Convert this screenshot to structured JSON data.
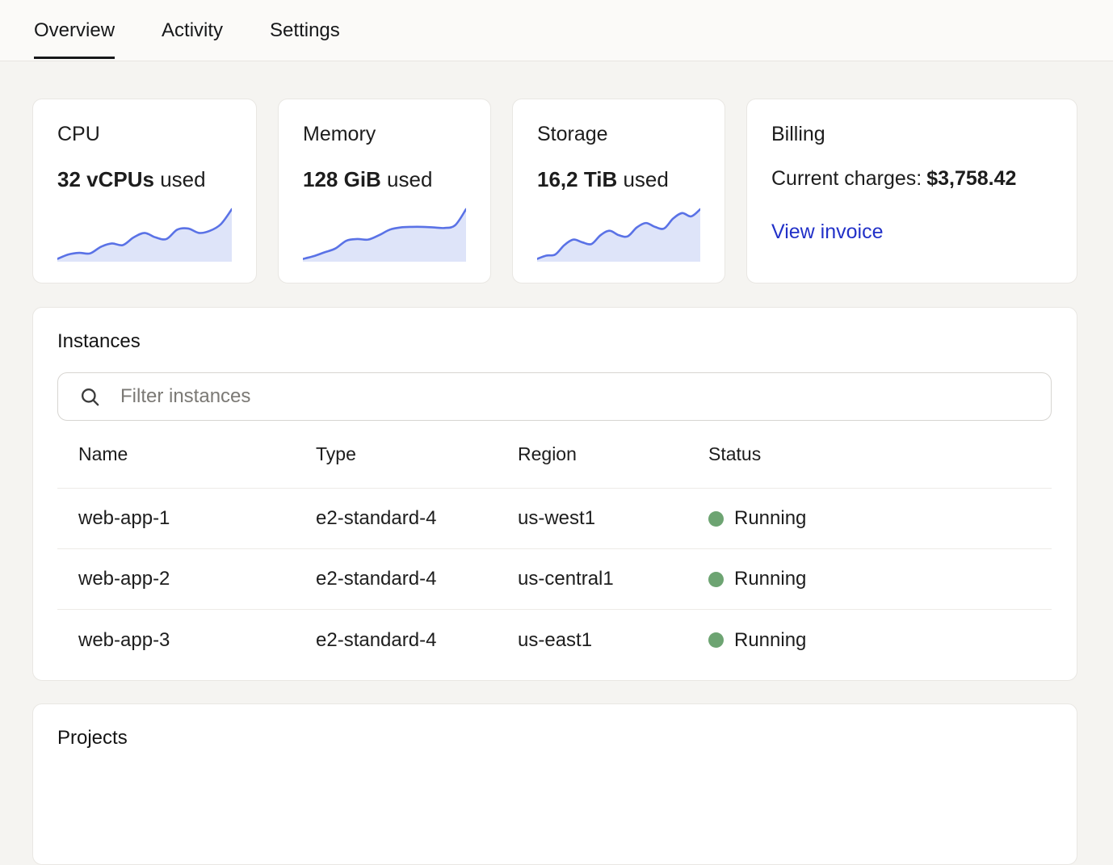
{
  "tabs": {
    "items": [
      {
        "label": "Overview",
        "active": true
      },
      {
        "label": "Activity",
        "active": false
      },
      {
        "label": "Settings",
        "active": false
      }
    ]
  },
  "cards": {
    "cpu": {
      "title": "CPU",
      "value": "32 vCPUs",
      "suffix": " used",
      "sparkline": [
        5,
        13,
        16,
        15,
        27,
        33,
        30,
        44,
        52,
        44,
        41,
        58,
        60,
        52,
        56,
        68,
        95
      ]
    },
    "memory": {
      "title": "Memory",
      "value": "128 GiB",
      "suffix": " used",
      "sparkline": [
        5,
        10,
        17,
        24,
        38,
        41,
        40,
        48,
        58,
        62,
        63,
        63,
        62,
        61,
        66,
        95
      ]
    },
    "storage": {
      "title": "Storage",
      "value": "16,2 TiB",
      "suffix": " used",
      "sparkline": [
        5,
        11,
        13,
        30,
        40,
        35,
        32,
        48,
        56,
        48,
        46,
        62,
        70,
        63,
        60,
        78,
        88,
        82,
        95
      ]
    },
    "billing": {
      "title": "Billing",
      "charges_label": "Current charges:",
      "charges_value": "$3,758.42",
      "link_label": "View invoice"
    }
  },
  "instances": {
    "title": "Instances",
    "filter_placeholder": "Filter instances",
    "table": {
      "columns": [
        "Name",
        "Type",
        "Region",
        "Status"
      ],
      "rows": [
        {
          "name": "web-app-1",
          "type": "e2-standard-4",
          "region": "us-west1",
          "status": "Running"
        },
        {
          "name": "web-app-2",
          "type": "e2-standard-4",
          "region": "us-central1",
          "status": "Running"
        },
        {
          "name": "web-app-3",
          "type": "e2-standard-4",
          "region": "us-east1",
          "status": "Running"
        }
      ]
    }
  },
  "projects": {
    "title": "Projects"
  },
  "colors": {
    "accent_link": "#2231c8",
    "spark_line": "#5a72e6",
    "spark_fill": "#dee4f9",
    "status_running": "#6da472"
  },
  "chart_data": [
    {
      "type": "area",
      "title": "CPU usage sparkline",
      "x": "time (unlabeled)",
      "values_pct": [
        5,
        13,
        16,
        15,
        27,
        33,
        30,
        44,
        52,
        44,
        41,
        58,
        60,
        52,
        56,
        68,
        95
      ],
      "legend": "none",
      "axes": "hidden"
    },
    {
      "type": "area",
      "title": "Memory usage sparkline",
      "x": "time (unlabeled)",
      "values_pct": [
        5,
        10,
        17,
        24,
        38,
        41,
        40,
        48,
        58,
        62,
        63,
        63,
        62,
        61,
        66,
        95
      ],
      "legend": "none",
      "axes": "hidden"
    },
    {
      "type": "area",
      "title": "Storage usage sparkline",
      "x": "time (unlabeled)",
      "values_pct": [
        5,
        11,
        13,
        30,
        40,
        35,
        32,
        48,
        56,
        48,
        46,
        62,
        70,
        63,
        60,
        78,
        88,
        82,
        95
      ],
      "legend": "none",
      "axes": "hidden"
    }
  ]
}
